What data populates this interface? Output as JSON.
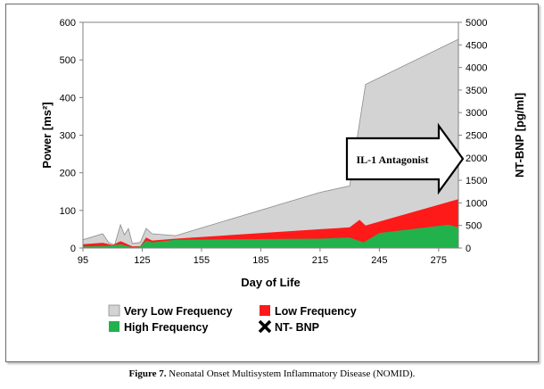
{
  "chart_data": {
    "type": "area",
    "xlabel": "Day of Life",
    "ylabel_left": "Power [ms²]",
    "ylabel_right": "NT-BNP [pg/ml]",
    "x_ticks": [
      95,
      125,
      155,
      185,
      215,
      245,
      275
    ],
    "y_left_ticks": [
      0,
      100,
      200,
      300,
      400,
      500,
      600
    ],
    "y_right_ticks": [
      0,
      500,
      1000,
      1500,
      2000,
      2500,
      3000,
      3500,
      4000,
      4500,
      5000
    ],
    "xlim": [
      95,
      285
    ],
    "ylim_left": [
      0,
      600
    ],
    "ylim_right": [
      0,
      5000
    ],
    "series": [
      {
        "name": "Very Low Frequency",
        "color": "#d3d3d3",
        "points": [
          [
            95,
            22
          ],
          [
            105,
            38
          ],
          [
            108,
            15
          ],
          [
            111,
            8
          ],
          [
            114,
            62
          ],
          [
            116,
            35
          ],
          [
            118,
            52
          ],
          [
            120,
            12
          ],
          [
            124,
            15
          ],
          [
            127,
            52
          ],
          [
            130,
            38
          ],
          [
            142,
            33
          ],
          [
            215,
            148
          ],
          [
            230,
            165
          ],
          [
            238,
            435
          ],
          [
            285,
            555
          ]
        ]
      },
      {
        "name": "Low Frequency",
        "color": "#ff1a1a",
        "points": [
          [
            95,
            10
          ],
          [
            105,
            14
          ],
          [
            110,
            8
          ],
          [
            114,
            18
          ],
          [
            116,
            14
          ],
          [
            120,
            4
          ],
          [
            124,
            5
          ],
          [
            127,
            28
          ],
          [
            130,
            20
          ],
          [
            142,
            25
          ],
          [
            215,
            50
          ],
          [
            230,
            55
          ],
          [
            235,
            75
          ],
          [
            238,
            60
          ],
          [
            285,
            130
          ]
        ]
      },
      {
        "name": "High Frequency",
        "color": "#22b24c",
        "points": [
          [
            95,
            4
          ],
          [
            108,
            6
          ],
          [
            114,
            10
          ],
          [
            120,
            2
          ],
          [
            124,
            4
          ],
          [
            127,
            20
          ],
          [
            130,
            15
          ],
          [
            142,
            22
          ],
          [
            215,
            25
          ],
          [
            230,
            28
          ],
          [
            237,
            15
          ],
          [
            245,
            40
          ],
          [
            280,
            62
          ],
          [
            285,
            55
          ]
        ]
      }
    ],
    "legend": [
      "Very Low Frequency",
      "Low Frequency",
      "High Frequency",
      "NT- BNP"
    ],
    "legend_marker_nt_bnp": "cross",
    "annotation": "IL-1 Antagonist"
  },
  "caption": {
    "label": "Figure 7.",
    "text": " Neonatal Onset Multisystem Inflammatory Disease (NOMID)."
  }
}
